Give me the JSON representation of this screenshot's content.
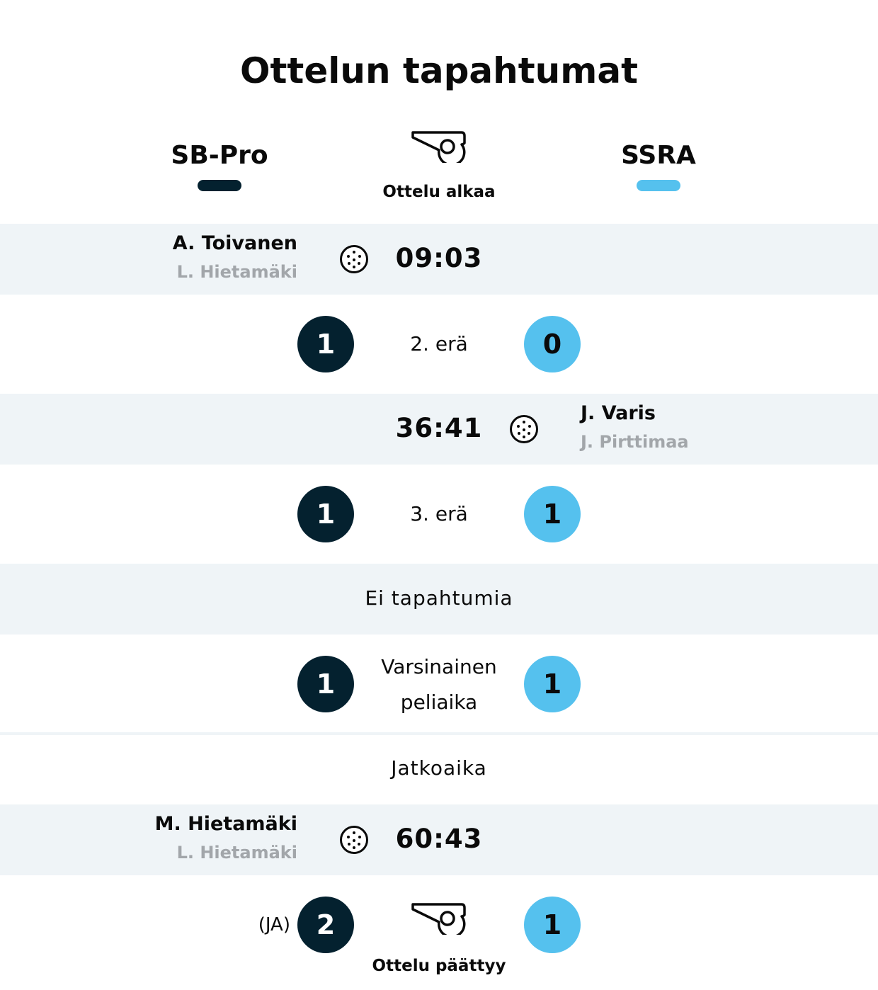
{
  "title": "Ottelun tapahtumat",
  "home_team": "SB-Pro",
  "away_team": "SSRA",
  "colors": {
    "home": "#04212f",
    "away": "#55c1ee",
    "band": "#eff4f7"
  },
  "start_label": "Ottelu alkaa",
  "events": [
    {
      "scorer": "A. Toivanen",
      "assist": "L. Hietamäki",
      "time": "09:03",
      "side": "home"
    },
    {
      "scorer": "J. Varis",
      "assist": "J. Pirttimaa",
      "time": "36:41",
      "side": "away"
    },
    {
      "scorer": "M. Hietamäki",
      "assist": "L. Hietamäki",
      "time": "60:43",
      "side": "home"
    }
  ],
  "periods": [
    {
      "label": "2. erä",
      "home": "1",
      "away": "0"
    },
    {
      "label": "3. erä",
      "home": "1",
      "away": "1"
    }
  ],
  "no_events": "Ei tapahtumia",
  "regulation": {
    "label_line1": "Varsinainen",
    "label_line2": "peliaika",
    "home": "1",
    "away": "1"
  },
  "overtime_label": "Jatkoaika",
  "final": {
    "suffix": "(JA)",
    "home": "2",
    "away": "1",
    "label": "Ottelu päättyy"
  },
  "icons": {
    "whistle": "whistle-icon",
    "ball": "floorball-icon"
  }
}
